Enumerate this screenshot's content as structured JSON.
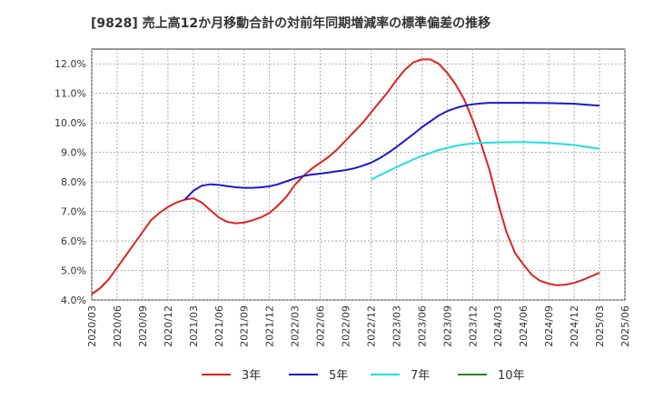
{
  "chart_data": {
    "type": "line",
    "title": "[9828]  売上高12か月移動合計の対前年同期増減率の標準偏差の推移",
    "xlabel": "",
    "ylabel": "",
    "ylim": [
      4.0,
      12.5
    ],
    "grid": true,
    "legend_position": "bottom",
    "x_ticks": [
      "2020/03",
      "2020/06",
      "2020/09",
      "2020/12",
      "2021/03",
      "2021/06",
      "2021/09",
      "2021/12",
      "2022/03",
      "2022/06",
      "2022/09",
      "2022/12",
      "2023/03",
      "2023/06",
      "2023/09",
      "2023/12",
      "2024/03",
      "2024/06",
      "2024/09",
      "2024/12",
      "2025/03",
      "2025/06"
    ],
    "y_ticks": [
      4.0,
      5.0,
      6.0,
      7.0,
      8.0,
      9.0,
      10.0,
      11.0,
      12.0
    ],
    "y_tick_labels": [
      "4.0%",
      "5.0%",
      "6.0%",
      "7.0%",
      "8.0%",
      "9.0%",
      "10.0%",
      "11.0%",
      "12.0%"
    ],
    "series": [
      {
        "name": "3年",
        "color": "#dd2222",
        "points": [
          [
            "2020/03",
            4.2
          ],
          [
            "2020/04",
            4.4
          ],
          [
            "2020/05",
            4.7
          ],
          [
            "2020/06",
            5.1
          ],
          [
            "2020/07",
            5.5
          ],
          [
            "2020/08",
            5.9
          ],
          [
            "2020/09",
            6.3
          ],
          [
            "2020/10",
            6.7
          ],
          [
            "2020/11",
            6.95
          ],
          [
            "2020/12",
            7.15
          ],
          [
            "2021/01",
            7.3
          ],
          [
            "2021/02",
            7.4
          ],
          [
            "2021/03",
            7.45
          ],
          [
            "2021/04",
            7.3
          ],
          [
            "2021/05",
            7.05
          ],
          [
            "2021/06",
            6.8
          ],
          [
            "2021/07",
            6.65
          ],
          [
            "2021/08",
            6.6
          ],
          [
            "2021/09",
            6.62
          ],
          [
            "2021/10",
            6.7
          ],
          [
            "2021/11",
            6.8
          ],
          [
            "2021/12",
            6.95
          ],
          [
            "2022/01",
            7.2
          ],
          [
            "2022/02",
            7.5
          ],
          [
            "2022/03",
            7.9
          ],
          [
            "2022/04",
            8.2
          ],
          [
            "2022/05",
            8.45
          ],
          [
            "2022/06",
            8.65
          ],
          [
            "2022/07",
            8.85
          ],
          [
            "2022/08",
            9.1
          ],
          [
            "2022/09",
            9.4
          ],
          [
            "2022/10",
            9.7
          ],
          [
            "2022/11",
            10.0
          ],
          [
            "2022/12",
            10.35
          ],
          [
            "2023/01",
            10.7
          ],
          [
            "2023/02",
            11.05
          ],
          [
            "2023/03",
            11.45
          ],
          [
            "2023/04",
            11.8
          ],
          [
            "2023/05",
            12.05
          ],
          [
            "2023/06",
            12.15
          ],
          [
            "2023/07",
            12.15
          ],
          [
            "2023/08",
            12.0
          ],
          [
            "2023/09",
            11.7
          ],
          [
            "2023/10",
            11.3
          ],
          [
            "2023/11",
            10.8
          ],
          [
            "2023/12",
            10.1
          ],
          [
            "2024/01",
            9.3
          ],
          [
            "2024/02",
            8.4
          ],
          [
            "2024/03",
            7.3
          ],
          [
            "2024/04",
            6.3
          ],
          [
            "2024/05",
            5.6
          ],
          [
            "2024/06",
            5.2
          ],
          [
            "2024/07",
            4.85
          ],
          [
            "2024/08",
            4.65
          ],
          [
            "2024/09",
            4.55
          ],
          [
            "2024/10",
            4.5
          ],
          [
            "2024/11",
            4.52
          ],
          [
            "2024/12",
            4.58
          ],
          [
            "2025/01",
            4.68
          ],
          [
            "2025/02",
            4.8
          ],
          [
            "2025/03",
            4.92
          ]
        ]
      },
      {
        "name": "5年",
        "color": "#1a1acc",
        "points": [
          [
            "2021/02",
            7.4
          ],
          [
            "2021/03",
            7.7
          ],
          [
            "2021/04",
            7.87
          ],
          [
            "2021/05",
            7.92
          ],
          [
            "2021/06",
            7.9
          ],
          [
            "2021/07",
            7.86
          ],
          [
            "2021/08",
            7.82
          ],
          [
            "2021/09",
            7.8
          ],
          [
            "2021/10",
            7.8
          ],
          [
            "2021/11",
            7.82
          ],
          [
            "2021/12",
            7.85
          ],
          [
            "2022/01",
            7.92
          ],
          [
            "2022/02",
            8.02
          ],
          [
            "2022/03",
            8.12
          ],
          [
            "2022/04",
            8.2
          ],
          [
            "2022/05",
            8.25
          ],
          [
            "2022/06",
            8.28
          ],
          [
            "2022/07",
            8.32
          ],
          [
            "2022/08",
            8.36
          ],
          [
            "2022/09",
            8.4
          ],
          [
            "2022/10",
            8.46
          ],
          [
            "2022/11",
            8.55
          ],
          [
            "2022/12",
            8.65
          ],
          [
            "2023/01",
            8.8
          ],
          [
            "2023/02",
            8.98
          ],
          [
            "2023/03",
            9.18
          ],
          [
            "2023/04",
            9.4
          ],
          [
            "2023/05",
            9.62
          ],
          [
            "2023/06",
            9.85
          ],
          [
            "2023/07",
            10.05
          ],
          [
            "2023/08",
            10.25
          ],
          [
            "2023/09",
            10.4
          ],
          [
            "2023/10",
            10.5
          ],
          [
            "2023/11",
            10.58
          ],
          [
            "2023/12",
            10.63
          ],
          [
            "2024/01",
            10.66
          ],
          [
            "2024/02",
            10.68
          ],
          [
            "2024/03",
            10.68
          ],
          [
            "2024/06",
            10.68
          ],
          [
            "2024/09",
            10.67
          ],
          [
            "2024/12",
            10.65
          ],
          [
            "2025/03",
            10.58
          ]
        ]
      },
      {
        "name": "7年",
        "color": "#22dddd",
        "points": [
          [
            "2022/12",
            8.08
          ],
          [
            "2023/01",
            8.22
          ],
          [
            "2023/02",
            8.36
          ],
          [
            "2023/03",
            8.5
          ],
          [
            "2023/04",
            8.63
          ],
          [
            "2023/05",
            8.76
          ],
          [
            "2023/06",
            8.88
          ],
          [
            "2023/07",
            8.98
          ],
          [
            "2023/08",
            9.08
          ],
          [
            "2023/09",
            9.15
          ],
          [
            "2023/10",
            9.22
          ],
          [
            "2023/11",
            9.27
          ],
          [
            "2023/12",
            9.3
          ],
          [
            "2024/01",
            9.32
          ],
          [
            "2024/03",
            9.34
          ],
          [
            "2024/06",
            9.35
          ],
          [
            "2024/09",
            9.32
          ],
          [
            "2024/12",
            9.25
          ],
          [
            "2025/03",
            9.12
          ]
        ]
      },
      {
        "name": "10年",
        "color": "#228822",
        "points": []
      }
    ]
  }
}
